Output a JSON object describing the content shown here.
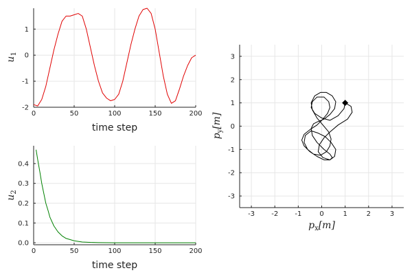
{
  "chart_data": [
    {
      "id": "u1",
      "type": "line",
      "xlabel": "time step",
      "ylabel": {
        "base": "u",
        "sub": "1"
      },
      "xlim": [
        0,
        200
      ],
      "ylim": [
        -2,
        1.8
      ],
      "xticks": [
        0,
        50,
        100,
        150,
        200
      ],
      "yticks": [
        -2,
        -1,
        0,
        1
      ],
      "ytick_labels": [
        "-2",
        "-1",
        "0",
        "1"
      ],
      "grid": true,
      "series": [
        {
          "color": "#e00000",
          "x": [
            0,
            5,
            10,
            15,
            20,
            25,
            30,
            35,
            40,
            45,
            50,
            55,
            60,
            65,
            70,
            75,
            80,
            85,
            90,
            95,
            100,
            105,
            110,
            115,
            120,
            125,
            130,
            135,
            140,
            145,
            150,
            155,
            160,
            165,
            170,
            175,
            180,
            185,
            190,
            195,
            200
          ],
          "y": [
            -1.9,
            -1.95,
            -1.7,
            -1.2,
            -0.5,
            0.2,
            0.8,
            1.3,
            1.5,
            1.5,
            1.55,
            1.6,
            1.5,
            1.0,
            0.3,
            -0.4,
            -1.0,
            -1.45,
            -1.65,
            -1.75,
            -1.7,
            -1.5,
            -1.0,
            -0.3,
            0.4,
            1.0,
            1.5,
            1.75,
            1.8,
            1.6,
            1.0,
            0.1,
            -0.8,
            -1.5,
            -1.85,
            -1.75,
            -1.3,
            -0.8,
            -0.4,
            -0.1,
            0.0
          ]
        }
      ]
    },
    {
      "id": "u2",
      "type": "line",
      "xlabel": "time step",
      "ylabel": {
        "base": "u",
        "sub": "2"
      },
      "xlim": [
        0,
        200
      ],
      "ylim": [
        -0.01,
        0.49
      ],
      "xticks": [
        0,
        50,
        100,
        150,
        200
      ],
      "yticks": [
        0,
        0.1,
        0.2,
        0.3,
        0.4
      ],
      "ytick_labels": [
        "0.0",
        "0.1",
        "0.2",
        "0.3",
        "0.4"
      ],
      "grid": true,
      "series": [
        {
          "color": "#008000",
          "x": [
            3,
            5,
            8,
            10,
            13,
            15,
            18,
            20,
            25,
            30,
            35,
            40,
            50,
            60,
            70,
            80,
            100,
            120,
            140,
            160,
            180,
            200
          ],
          "y": [
            0.47,
            0.42,
            0.35,
            0.3,
            0.24,
            0.2,
            0.16,
            0.13,
            0.085,
            0.055,
            0.035,
            0.022,
            0.01,
            0.004,
            0.002,
            0.001,
            0.0,
            0.0,
            0.0,
            0.0,
            0.0,
            0.0
          ]
        }
      ]
    },
    {
      "id": "traj",
      "type": "line",
      "xlabel": {
        "base": "p",
        "sub": "x",
        "unit": "[m]"
      },
      "ylabel": {
        "base": "p",
        "sub": "y",
        "unit": "[m]"
      },
      "xlim": [
        -3.5,
        3.5
      ],
      "ylim": [
        -3.5,
        3.5
      ],
      "xticks": [
        -3,
        -2,
        -1,
        0,
        1,
        2,
        3
      ],
      "yticks": [
        -3,
        -2,
        -1,
        0,
        1,
        2,
        3
      ],
      "grid": true,
      "series": [
        {
          "color": "#000000",
          "x": [
            1.0,
            1.25,
            1.3,
            1.1,
            0.7,
            0.35,
            0.1,
            -0.1,
            -0.15,
            0.05,
            0.35,
            0.55,
            0.6,
            0.4,
            0.15,
            -0.15,
            -0.45,
            -0.7,
            -0.75,
            -0.6,
            -0.35,
            -0.05,
            0.2,
            0.35,
            0.4,
            0.3,
            0.05,
            -0.2,
            -0.4,
            -0.45,
            -0.3,
            -0.05,
            0.2,
            0.45,
            0.6,
            0.55,
            0.35,
            0.1,
            -0.15,
            -0.35,
            -0.45,
            -0.4,
            -0.2,
            0.1,
            0.35,
            0.45,
            0.35,
            0.1,
            -0.2,
            -0.5,
            -0.75,
            -0.85,
            -0.75,
            -0.5,
            -0.2,
            0.05,
            0.25,
            0.35,
            0.3,
            0.1,
            -0.2,
            -0.4,
            -0.45,
            -0.3,
            0.0,
            0.35,
            0.7,
            0.95,
            1.0
          ],
          "y": [
            1.0,
            0.85,
            0.6,
            0.3,
            0.05,
            -0.25,
            -0.5,
            -0.8,
            -1.1,
            -1.35,
            -1.45,
            -1.3,
            -1.0,
            -0.7,
            -0.45,
            -0.3,
            -0.2,
            -0.4,
            -0.7,
            -1.0,
            -1.2,
            -1.25,
            -1.1,
            -0.85,
            -0.55,
            -0.25,
            0.05,
            0.35,
            0.7,
            1.0,
            1.3,
            1.45,
            1.45,
            1.3,
            1.05,
            0.75,
            0.5,
            0.3,
            0.2,
            0.1,
            -0.1,
            -0.4,
            -0.7,
            -1.0,
            -1.2,
            -1.35,
            -1.45,
            -1.45,
            -1.3,
            -1.1,
            -0.85,
            -0.6,
            -0.35,
            -0.15,
            0.05,
            0.3,
            0.55,
            0.8,
            1.05,
            1.25,
            1.25,
            1.05,
            0.8,
            0.55,
            0.35,
            0.25,
            0.45,
            0.75,
            1.0
          ]
        }
      ],
      "marker": {
        "shape": "diamond",
        "x": 1.0,
        "y": 1.0,
        "color": "#000000"
      }
    }
  ]
}
